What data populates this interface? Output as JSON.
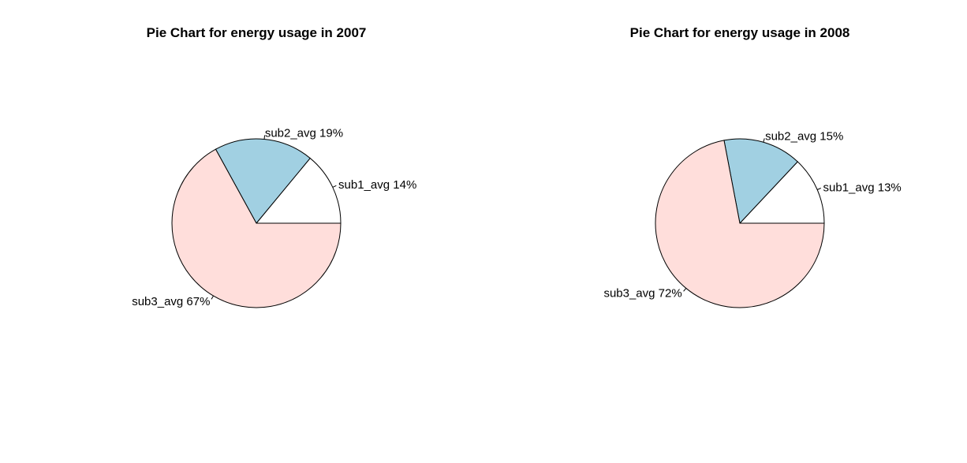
{
  "colors": {
    "background": "#ffffff",
    "slice_1": "#ffffff",
    "slice_2": "#a1d0e2",
    "slice_3": "#ffdedb",
    "stroke": "#000000"
  },
  "chart_data": [
    {
      "type": "pie",
      "title": "Pie Chart for energy usage in 2007",
      "labels": [
        "sub1_avg 14%",
        "sub2_avg 19%",
        "sub3_avg 67%"
      ],
      "values": [
        14,
        19,
        67
      ],
      "start_angle_deg": 0,
      "direction": "counterclockwise"
    },
    {
      "type": "pie",
      "title": "Pie Chart for energy usage in 2008",
      "labels": [
        "sub1_avg 13%",
        "sub2_avg 15%",
        "sub3_avg 72%"
      ],
      "values": [
        13,
        15,
        72
      ],
      "start_angle_deg": 0,
      "direction": "counterclockwise"
    }
  ]
}
